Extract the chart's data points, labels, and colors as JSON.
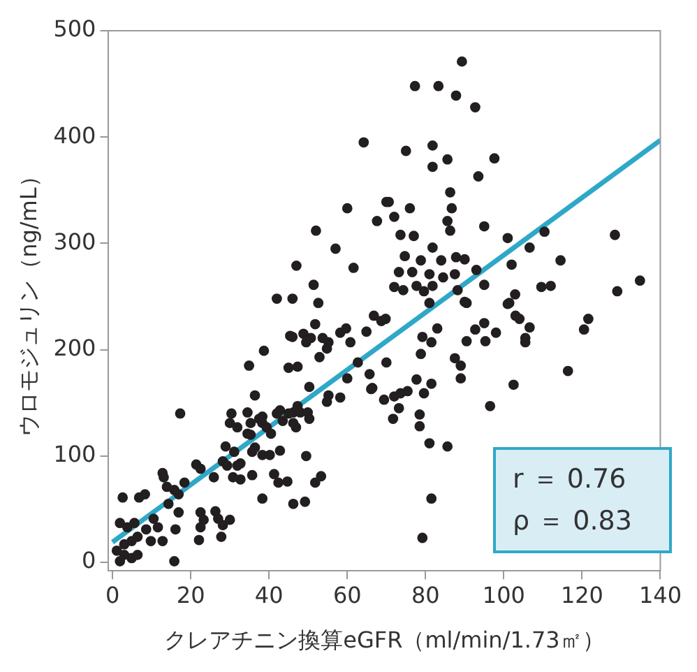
{
  "chart_data": {
    "type": "scatter",
    "xlabel": "クレアチニン換算eGFR（ml/min/1.73㎡）",
    "ylabel": "ウロモジュリン（ng/mL）",
    "xlim": [
      -1,
      140
    ],
    "ylim": [
      -8,
      500
    ],
    "xticks": [
      0,
      20,
      40,
      60,
      80,
      100,
      120,
      140
    ],
    "yticks": [
      0,
      100,
      200,
      300,
      400,
      500
    ],
    "grid": false,
    "legend": false,
    "annotations": [
      "r ＝ 0.76",
      "ρ ＝ 0.83"
    ],
    "series": [
      {
        "type": "scatter",
        "marker": "circle",
        "color": "#231f20",
        "x": [
          64.2,
          60,
          70,
          67.6,
          72,
          52,
          57,
          47,
          61.6,
          51.4,
          42,
          46,
          52.6,
          72,
          89.3,
          77.3,
          83.3,
          87.8,
          92.7,
          75,
          81.8,
          81.8,
          85.6,
          97.6,
          93.5,
          86.3,
          70.6,
          76,
          86.7,
          85.6,
          86.3,
          73.6,
          77,
          95,
          101,
          110.4,
          128.4,
          106.6,
          81.8,
          74.7,
          78.8,
          84,
          87.8,
          90,
          114.5,
          102,
          73.2,
          76.6,
          81,
          84.5,
          87.5,
          93,
          95,
          74.3,
          77.7,
          79.6,
          81.8,
          88.2,
          102.9,
          109.6,
          112,
          129,
          134.8,
          90,
          101.4,
          81,
          90.5,
          101,
          66.8,
          68.7,
          103,
          104,
          106.6,
          121.6,
          120.5,
          95,
          92.7,
          98,
          83,
          79.2,
          81.5,
          90.5,
          95.3,
          105.5,
          105.5,
          78.8,
          87.5,
          89,
          89,
          70,
          116.4,
          66.4,
          69.4,
          72,
          73.6,
          75.4,
          77.7,
          79.6,
          81.5,
          102.5,
          73.2,
          71.7,
          78.5,
          78.5,
          96.5,
          81,
          85.6,
          81.5,
          79.2,
          69.8,
          51.8,
          45.4,
          46,
          48.8,
          50.7,
          49.5,
          53.7,
          55.2,
          58.2,
          59.7,
          60.8,
          64.9,
          54.8,
          52.9,
          38.7,
          34.9,
          45,
          47.3,
          62.7,
          50.3,
          55.2,
          58.2,
          60,
          65.7,
          66.1,
          54.8,
          36.4,
          34.5,
          30.4,
          17.3,
          30,
          31.9,
          34.5,
          35.3,
          37.5,
          38.3,
          38.3,
          39.4,
          40.5,
          42.8,
          42,
          43.5,
          45,
          46.2,
          47.3,
          48,
          46.2,
          49.9,
          50.3,
          46.9,
          35.3,
          36.4,
          35.7,
          38.3,
          40.2,
          42.8,
          49.5,
          28.9,
          31.1,
          32.7,
          28.2,
          29.3,
          31.9,
          25.9,
          30.8,
          32.7,
          35.7,
          41.3,
          42.4,
          44.7,
          38.3,
          46.2,
          49.2,
          51.8,
          53.3,
          22.5,
          21.4,
          18.4,
          15.8,
          16.9,
          13.9,
          12.8,
          13.1,
          6.8,
          8.3,
          2.6,
          14.3,
          16.9,
          22.5,
          23.3,
          22.5,
          26.3,
          27,
          28.2,
          30,
          27.8,
          22.1,
          16.1,
          12.8,
          10.5,
          11.6,
          8.6,
          9.8,
          5.6,
          3.8,
          1.9,
          6.4,
          4.9,
          3,
          1.1,
          3,
          4.9,
          6.4,
          1.9,
          15.8
        ],
        "values": [
          395,
          333,
          339,
          321,
          325,
          312,
          295,
          279,
          277,
          261,
          248,
          248,
          244,
          259,
          471,
          448,
          448,
          439,
          428,
          387,
          392,
          372,
          379,
          380,
          363,
          348,
          339,
          333,
          333,
          321,
          312,
          308,
          307,
          316,
          305,
          311,
          308,
          296,
          296,
          288,
          284,
          284,
          287,
          285,
          284,
          280,
          273,
          273,
          271,
          268,
          271,
          275,
          261,
          256,
          260,
          255,
          260,
          256,
          252,
          259,
          260,
          255,
          265,
          245,
          244,
          244,
          244,
          243,
          232,
          227,
          232,
          229,
          221,
          229,
          219,
          225,
          219,
          216,
          220,
          212,
          207,
          208,
          208,
          211,
          207,
          196,
          192,
          185,
          173,
          188,
          180,
          164,
          153,
          156,
          159,
          161,
          172,
          159,
          168,
          167,
          145,
          135,
          139,
          128,
          147,
          112,
          109,
          60,
          23,
          229,
          224,
          213,
          212,
          215,
          211,
          207,
          211,
          207,
          216,
          220,
          207,
          217,
          201,
          193,
          199,
          185,
          183,
          184,
          188,
          165,
          157,
          155,
          173,
          177,
          163,
          151,
          157,
          141,
          140,
          140,
          131,
          127,
          121,
          131,
          135,
          131,
          137,
          127,
          121,
          143,
          140,
          133,
          140,
          141,
          147,
          141,
          131,
          141,
          135,
          127,
          120,
          108,
          104,
          101,
          101,
          105,
          100,
          109,
          104,
          93,
          95,
          91,
          91,
          80,
          80,
          78,
          82,
          83,
          75,
          76,
          60,
          55,
          57,
          75,
          81,
          88,
          92,
          75,
          68,
          64,
          71,
          84,
          80,
          61,
          64,
          61,
          55,
          47,
          47,
          40,
          33,
          48,
          41,
          35,
          40,
          24,
          21,
          31,
          20,
          41,
          33,
          31,
          20,
          37,
          33,
          37,
          24,
          20,
          17,
          11,
          7,
          4,
          7,
          1,
          1
        ]
      },
      {
        "type": "line",
        "color": "#2fa8c8",
        "x": [
          0,
          140
        ],
        "values": [
          19,
          397
        ]
      }
    ]
  }
}
